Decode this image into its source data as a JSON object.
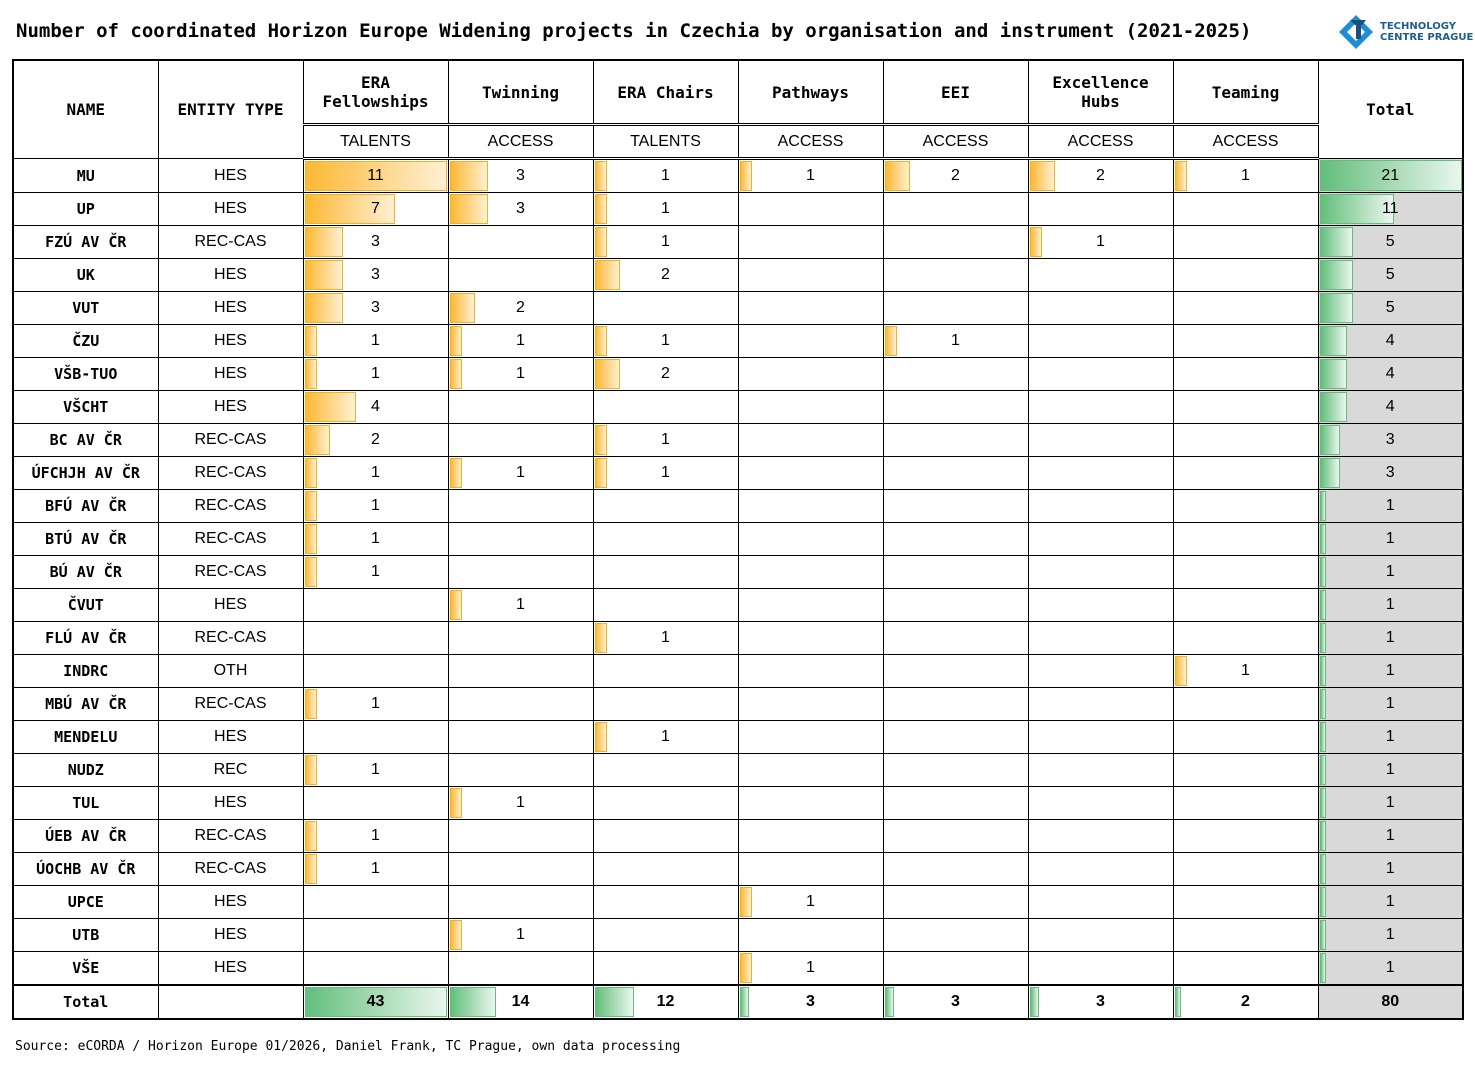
{
  "title": "Number of coordinated Horizon Europe Widening projects in Czechia by organisation and instrument (2021-2025)",
  "logo": {
    "line1": "TECHNOLOGY",
    "line2": "CENTRE PRAGUE"
  },
  "source": "Source: eCORDA / Horizon Europe 01/2026, Daniel Frank, TC Prague, own data processing",
  "colors": {
    "instrument_bar": "#fdb833",
    "total_bar": "#63be7b",
    "total_bg": "#d9d9d9"
  },
  "chart_data": {
    "type": "table",
    "headers": {
      "name": "NAME",
      "entity": "ENTITY TYPE",
      "total": "Total"
    },
    "columns": [
      {
        "label": "ERA Fellowships",
        "sub": "TALENTS"
      },
      {
        "label": "Twinning",
        "sub": "ACCESS"
      },
      {
        "label": "ERA Chairs",
        "sub": "TALENTS"
      },
      {
        "label": "Pathways",
        "sub": "ACCESS"
      },
      {
        "label": "EEI",
        "sub": "ACCESS"
      },
      {
        "label": "Excellence Hubs",
        "sub": "ACCESS"
      },
      {
        "label": "Teaming",
        "sub": "ACCESS"
      }
    ],
    "rows": [
      {
        "name": "MU",
        "entity": "HES",
        "values": [
          11,
          3,
          1,
          1,
          2,
          2,
          1
        ],
        "total": 21
      },
      {
        "name": "UP",
        "entity": "HES",
        "values": [
          7,
          3,
          1,
          null,
          null,
          null,
          null
        ],
        "total": 11
      },
      {
        "name": "FZÚ AV ČR",
        "entity": "REC-CAS",
        "values": [
          3,
          null,
          1,
          null,
          null,
          1,
          null
        ],
        "total": 5
      },
      {
        "name": "UK",
        "entity": "HES",
        "values": [
          3,
          null,
          2,
          null,
          null,
          null,
          null
        ],
        "total": 5
      },
      {
        "name": "VUT",
        "entity": "HES",
        "values": [
          3,
          2,
          null,
          null,
          null,
          null,
          null
        ],
        "total": 5
      },
      {
        "name": "ČZU",
        "entity": "HES",
        "values": [
          1,
          1,
          1,
          null,
          1,
          null,
          null
        ],
        "total": 4
      },
      {
        "name": "VŠB-TUO",
        "entity": "HES",
        "values": [
          1,
          1,
          2,
          null,
          null,
          null,
          null
        ],
        "total": 4
      },
      {
        "name": "VŠCHT",
        "entity": "HES",
        "values": [
          4,
          null,
          null,
          null,
          null,
          null,
          null
        ],
        "total": 4
      },
      {
        "name": "BC AV ČR",
        "entity": "REC-CAS",
        "values": [
          2,
          null,
          1,
          null,
          null,
          null,
          null
        ],
        "total": 3
      },
      {
        "name": "ÚFCHJH AV ČR",
        "entity": "REC-CAS",
        "values": [
          1,
          1,
          1,
          null,
          null,
          null,
          null
        ],
        "total": 3
      },
      {
        "name": "BFÚ AV ČR",
        "entity": "REC-CAS",
        "values": [
          1,
          null,
          null,
          null,
          null,
          null,
          null
        ],
        "total": 1
      },
      {
        "name": "BTÚ AV ČR",
        "entity": "REC-CAS",
        "values": [
          1,
          null,
          null,
          null,
          null,
          null,
          null
        ],
        "total": 1
      },
      {
        "name": "BÚ AV ČR",
        "entity": "REC-CAS",
        "values": [
          1,
          null,
          null,
          null,
          null,
          null,
          null
        ],
        "total": 1
      },
      {
        "name": "ČVUT",
        "entity": "HES",
        "values": [
          null,
          1,
          null,
          null,
          null,
          null,
          null
        ],
        "total": 1
      },
      {
        "name": "FLÚ AV ČR",
        "entity": "REC-CAS",
        "values": [
          null,
          null,
          1,
          null,
          null,
          null,
          null
        ],
        "total": 1
      },
      {
        "name": "INDRC",
        "entity": "OTH",
        "values": [
          null,
          null,
          null,
          null,
          null,
          null,
          1
        ],
        "total": 1
      },
      {
        "name": "MBÚ AV ČR",
        "entity": "REC-CAS",
        "values": [
          1,
          null,
          null,
          null,
          null,
          null,
          null
        ],
        "total": 1
      },
      {
        "name": "MENDELU",
        "entity": "HES",
        "values": [
          null,
          null,
          1,
          null,
          null,
          null,
          null
        ],
        "total": 1
      },
      {
        "name": "NUDZ",
        "entity": "REC",
        "values": [
          1,
          null,
          null,
          null,
          null,
          null,
          null
        ],
        "total": 1
      },
      {
        "name": "TUL",
        "entity": "HES",
        "values": [
          null,
          1,
          null,
          null,
          null,
          null,
          null
        ],
        "total": 1
      },
      {
        "name": "ÚEB AV ČR",
        "entity": "REC-CAS",
        "values": [
          1,
          null,
          null,
          null,
          null,
          null,
          null
        ],
        "total": 1
      },
      {
        "name": "ÚOCHB AV ČR",
        "entity": "REC-CAS",
        "values": [
          1,
          null,
          null,
          null,
          null,
          null,
          null
        ],
        "total": 1
      },
      {
        "name": "UPCE",
        "entity": "HES",
        "values": [
          null,
          null,
          null,
          1,
          null,
          null,
          null
        ],
        "total": 1
      },
      {
        "name": "UTB",
        "entity": "HES",
        "values": [
          null,
          1,
          null,
          null,
          null,
          null,
          null
        ],
        "total": 1
      },
      {
        "name": "VŠE",
        "entity": "HES",
        "values": [
          null,
          null,
          null,
          1,
          null,
          null,
          null
        ],
        "total": 1
      }
    ],
    "totals": {
      "label": "Total",
      "values": [
        43,
        14,
        12,
        3,
        3,
        3,
        2
      ],
      "total": 80
    }
  }
}
